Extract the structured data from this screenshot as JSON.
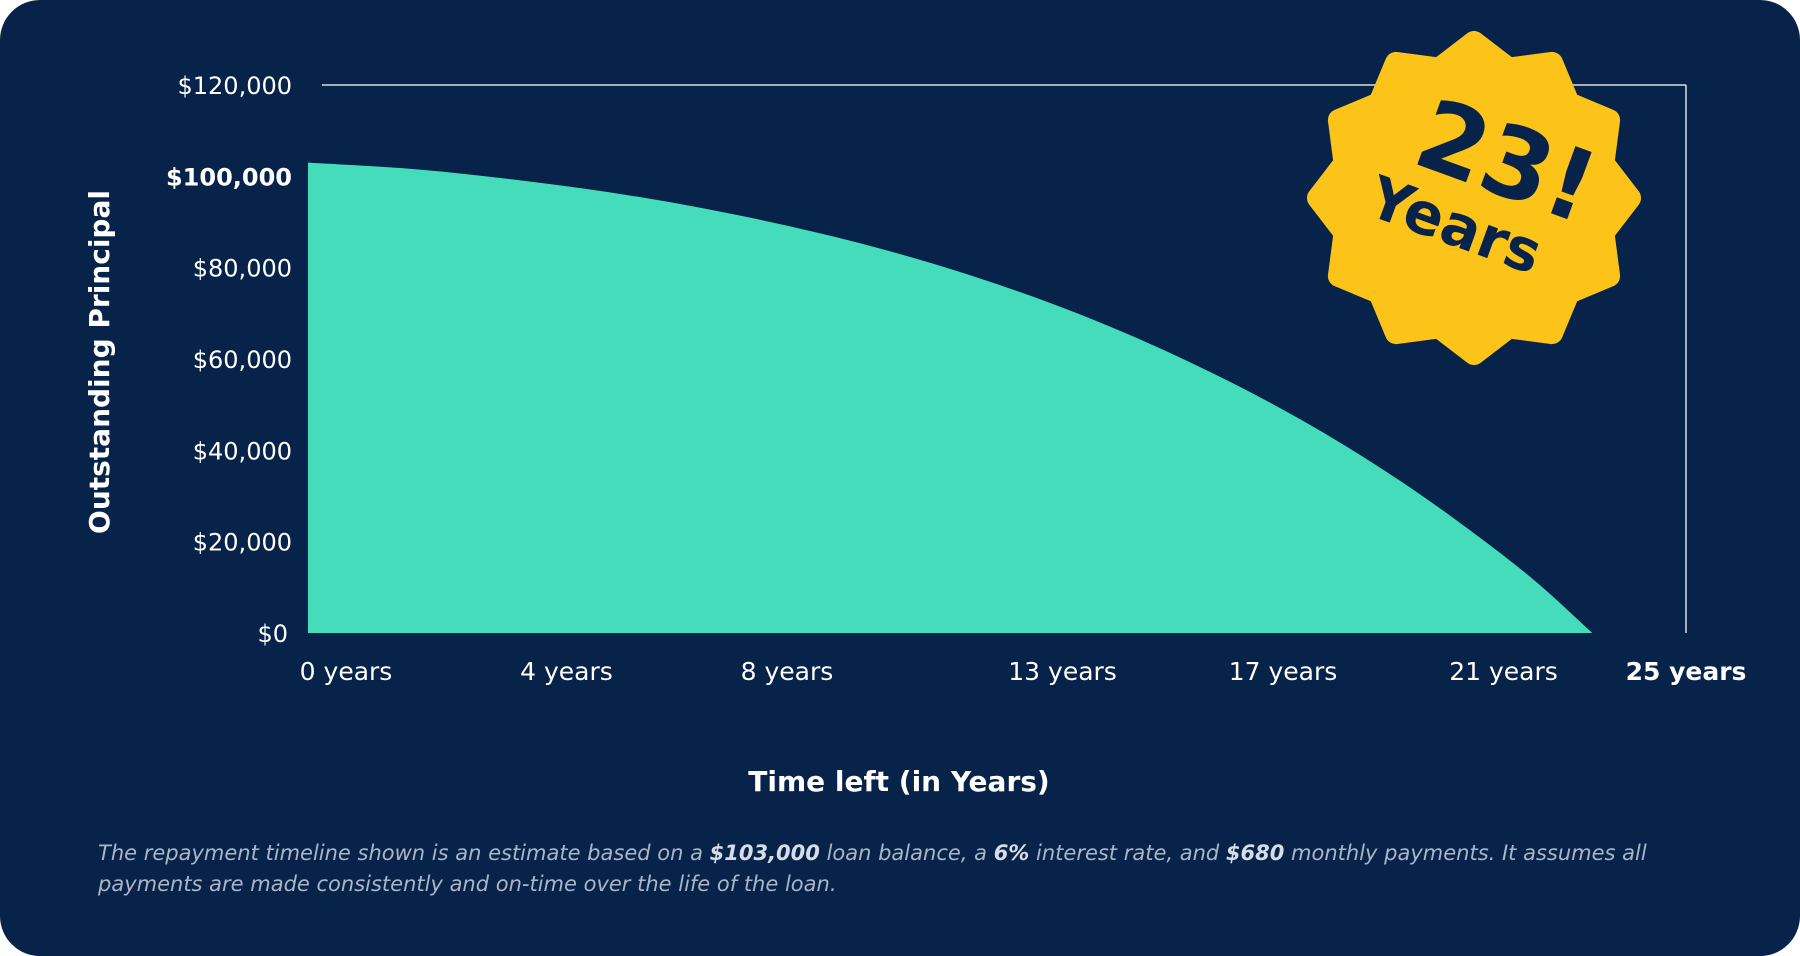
{
  "chart_data": {
    "type": "area",
    "xlabel": "Time left (in Years)",
    "ylabel": "Outstanding Principal",
    "ylim": [
      0,
      120000
    ],
    "xlim": [
      0,
      25
    ],
    "y_ticks": [
      {
        "value": 0,
        "label": "$0"
      },
      {
        "value": 20000,
        "label": "$20,000"
      },
      {
        "value": 40000,
        "label": "$40,000"
      },
      {
        "value": 60000,
        "label": "$60,000"
      },
      {
        "value": 80000,
        "label": "$80,000"
      },
      {
        "value": 100000,
        "label": "$100,000",
        "emphasis": true
      },
      {
        "value": 120000,
        "label": "$120,000"
      }
    ],
    "x_ticks": [
      {
        "value": 0,
        "label": "0 years"
      },
      {
        "value": 4,
        "label": "4 years"
      },
      {
        "value": 8,
        "label": "8 years"
      },
      {
        "value": 13,
        "label": "13 years"
      },
      {
        "value": 17,
        "label": "17 years"
      },
      {
        "value": 21,
        "label": "21 years"
      },
      {
        "value": 25,
        "label": "25 years",
        "emphasis": true
      }
    ],
    "series": [
      {
        "x": [
          0,
          2,
          4,
          6,
          8,
          10,
          12,
          14,
          16,
          18,
          20,
          22,
          23.3
        ],
        "values": [
          103000,
          101500,
          98900,
          95500,
          91000,
          85400,
          78400,
          69800,
          59300,
          46800,
          31800,
          14000,
          0
        ]
      }
    ],
    "grid": false,
    "colors": {
      "area": "#45dcbc",
      "background": "#072349",
      "axis": "#d9dee6",
      "badge": "#fcc419",
      "badge_text": "#072349"
    }
  },
  "badge": {
    "number": "23!",
    "label": "Years"
  },
  "footnote": {
    "p1": "The repayment timeline shown is an estimate based on a ",
    "b1": "$103,000",
    "p2": " loan balance, a ",
    "b2": "6%",
    "p3": " interest rate, and ",
    "b3": "$680",
    "p4": " monthly payments. It assumes all payments are made consistently and on-time over the life of the loan."
  }
}
